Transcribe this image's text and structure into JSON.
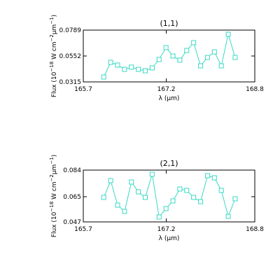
{
  "chart_data": [
    {
      "type": "line",
      "title": "(1,1)",
      "marker": "square",
      "ylabel": [
        "Flux (10",
        "−18",
        " W cm",
        "−2",
        "μm",
        "−1",
        ")"
      ],
      "xlabel": "λ (μm)",
      "x": [
        166.07,
        166.195,
        166.32,
        166.445,
        166.57,
        166.695,
        166.82,
        166.945,
        167.07,
        167.195,
        167.32,
        167.445,
        167.57,
        167.695,
        167.82,
        167.945,
        168.07,
        168.195,
        168.32,
        168.445
      ],
      "series": [
        {
          "color": "#3ad9c4",
          "values": [
            0.036,
            0.0494,
            0.0469,
            0.043,
            0.045,
            0.043,
            0.0417,
            0.0443,
            0.052,
            0.0629,
            0.0552,
            0.0514,
            0.0603,
            0.0674,
            0.0462,
            0.0539,
            0.059,
            0.0462,
            0.0751,
            0.0539
          ]
        }
      ],
      "xlim": [
        165.7,
        168.8
      ],
      "xticks": [
        165.7,
        167.2,
        168.8
      ],
      "ylim": [
        0.0315,
        0.0789
      ],
      "yticks": [
        0.0315,
        0.0552,
        0.0789
      ]
    },
    {
      "type": "line",
      "title": "(2,1)",
      "marker": "square",
      "ylabel": [
        "Flux (10",
        "−18",
        " W cm",
        "−2",
        "μm",
        "−1",
        ")"
      ],
      "xlabel": "λ (μm)",
      "x": [
        166.07,
        166.195,
        166.32,
        166.445,
        166.57,
        166.695,
        166.82,
        166.945,
        167.07,
        167.195,
        167.32,
        167.445,
        167.57,
        167.695,
        167.82,
        167.945,
        168.07,
        168.195,
        168.32,
        168.445
      ],
      "series": [
        {
          "color": "#3ad9c4",
          "values": [
            0.0645,
            0.0765,
            0.059,
            0.0545,
            0.0755,
            0.0685,
            0.0645,
            0.081,
            0.0505,
            0.0565,
            0.062,
            0.0705,
            0.0695,
            0.0645,
            0.0615,
            0.08,
            0.0785,
            0.0695,
            0.051,
            0.0635
          ]
        }
      ],
      "xlim": [
        165.7,
        168.8
      ],
      "xticks": [
        165.7,
        167.2,
        168.8
      ],
      "ylim": [
        0.047,
        0.084
      ],
      "yticks": [
        0.047,
        0.065,
        0.084
      ]
    }
  ]
}
